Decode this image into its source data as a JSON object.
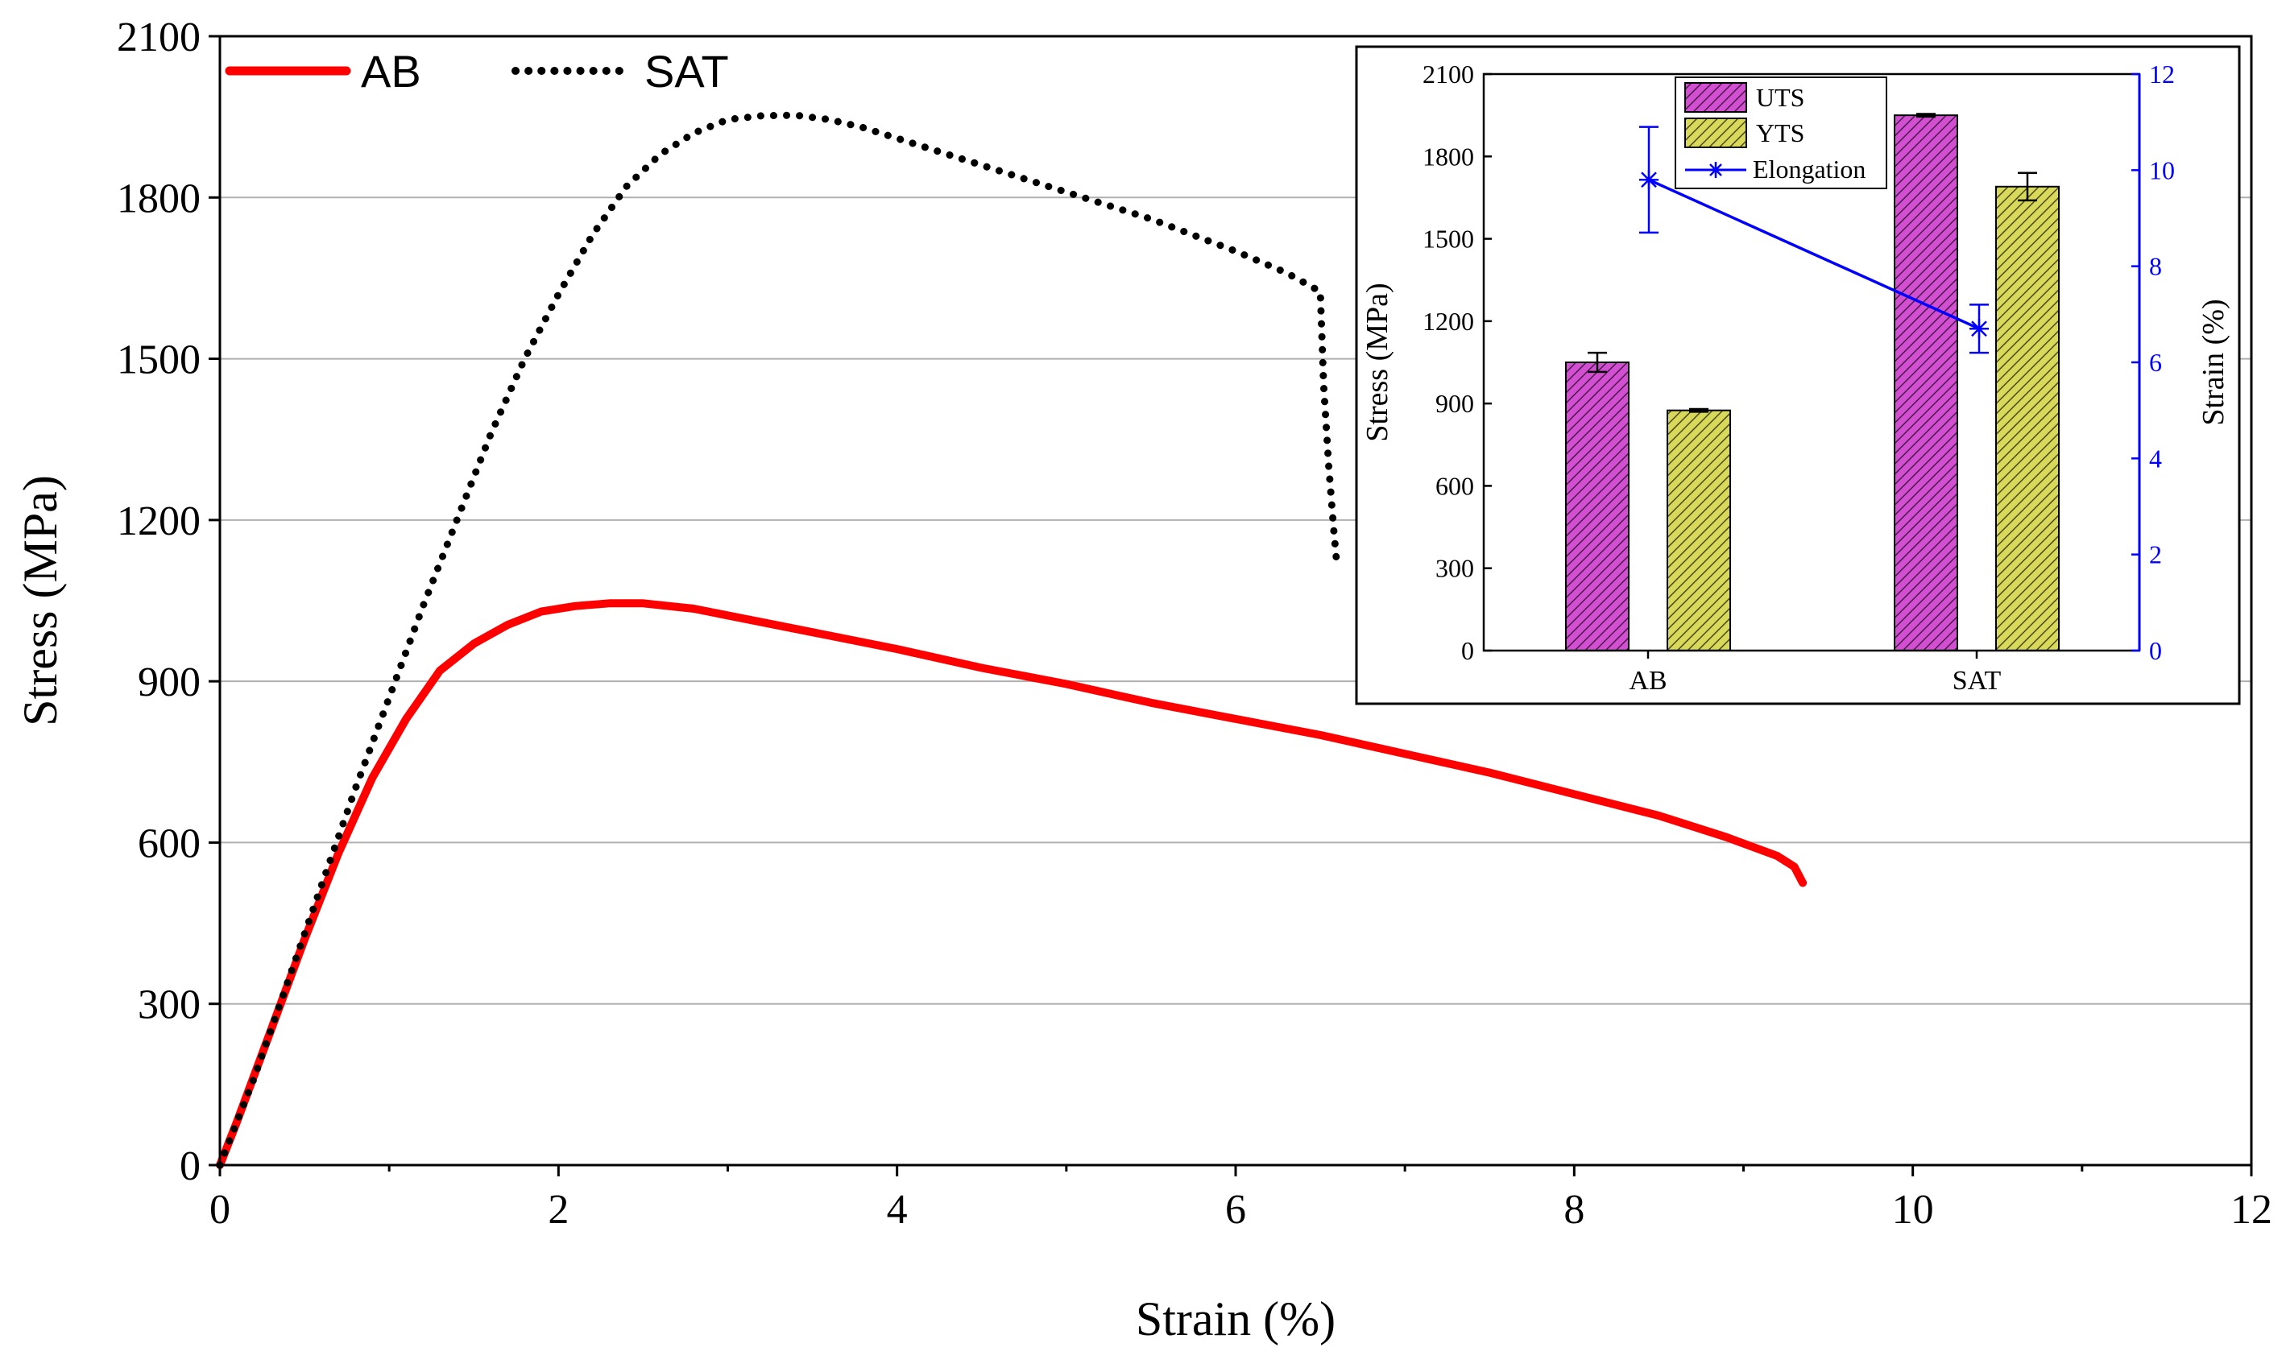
{
  "chart_data": [
    {
      "type": "line",
      "title": "",
      "xlabel": "Strain (%)",
      "ylabel": "Stress (MPa)",
      "xlim": [
        0,
        12
      ],
      "ylim": [
        0,
        2100
      ],
      "xticks": [
        "0",
        "2",
        "4",
        "6",
        "8",
        "10",
        "12"
      ],
      "yticks": [
        "0",
        "300",
        "600",
        "900",
        "1200",
        "1500",
        "1800",
        "2100"
      ],
      "grid": "horizontal",
      "legend_position": "top-left",
      "series": [
        {
          "name": "AB",
          "color": "#ff0000",
          "style": "solid",
          "x": [
            0,
            0.1,
            0.3,
            0.5,
            0.7,
            0.9,
            1.1,
            1.3,
            1.5,
            1.7,
            1.9,
            2.1,
            2.3,
            2.5,
            2.8,
            3.2,
            3.6,
            4.0,
            4.5,
            5.0,
            5.5,
            6.0,
            6.5,
            7.0,
            7.5,
            8.0,
            8.5,
            8.9,
            9.2,
            9.3,
            9.35
          ],
          "y": [
            0,
            80,
            250,
            420,
            580,
            720,
            830,
            920,
            970,
            1005,
            1030,
            1040,
            1045,
            1045,
            1035,
            1010,
            985,
            960,
            925,
            895,
            860,
            830,
            800,
            765,
            730,
            690,
            650,
            610,
            575,
            555,
            525
          ]
        },
        {
          "name": "SAT",
          "color": "#000000",
          "style": "dotted",
          "x": [
            0,
            0.2,
            0.4,
            0.6,
            0.8,
            1.0,
            1.2,
            1.4,
            1.6,
            1.8,
            2.0,
            2.2,
            2.4,
            2.6,
            2.8,
            3.0,
            3.2,
            3.4,
            3.6,
            3.8,
            4.0,
            4.5,
            5.0,
            5.5,
            6.0,
            6.3,
            6.5,
            6.52,
            6.55,
            6.58,
            6.6
          ],
          "y": [
            0,
            160,
            340,
            520,
            700,
            870,
            1040,
            1200,
            1360,
            1500,
            1620,
            1730,
            1820,
            1880,
            1920,
            1945,
            1952,
            1953,
            1945,
            1930,
            1910,
            1860,
            1810,
            1760,
            1700,
            1660,
            1625,
            1450,
            1300,
            1180,
            1110
          ]
        }
      ]
    },
    {
      "type": "bar",
      "title": "",
      "xlabel": "",
      "ylabel": "Stress (MPa)",
      "y2label": "Strain (%)",
      "categories": [
        "AB",
        "SAT"
      ],
      "ylim": [
        0,
        2100
      ],
      "y2lim": [
        0,
        12
      ],
      "yticks": [
        "0",
        "300",
        "600",
        "900",
        "1200",
        "1500",
        "1800",
        "2100"
      ],
      "y2ticks": [
        "0",
        "2",
        "4",
        "6",
        "8",
        "10",
        "12"
      ],
      "legend_position": "top-left",
      "series": [
        {
          "name": "UTS",
          "color": "#cc33cc",
          "values": [
            1050,
            1950
          ],
          "errors": [
            35,
            5
          ]
        },
        {
          "name": "YTS",
          "color": "#cccc33",
          "values": [
            875,
            1690
          ],
          "errors": [
            5,
            50
          ]
        },
        {
          "name": "Elongation",
          "color": "#0000ff",
          "axis": "right",
          "type": "line",
          "values": [
            9.8,
            6.7
          ],
          "errors": [
            1.1,
            0.5
          ]
        }
      ]
    }
  ]
}
